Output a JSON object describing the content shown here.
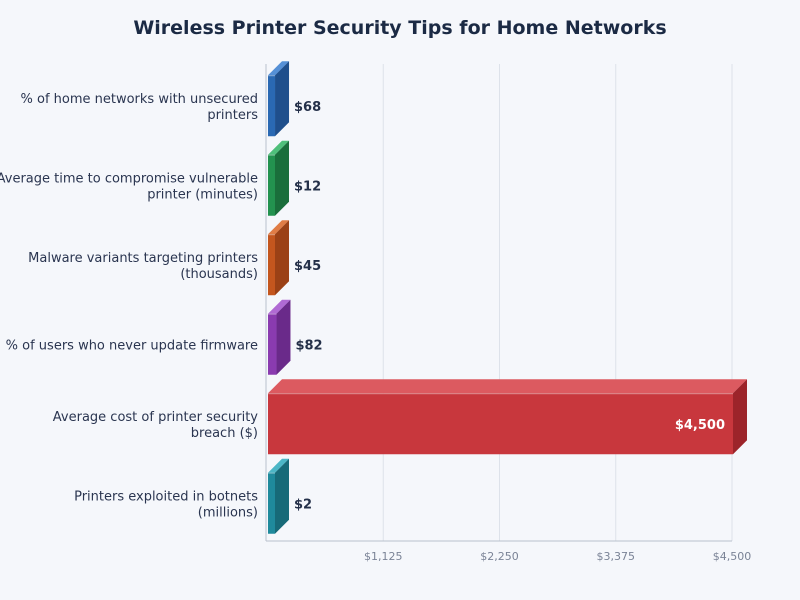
{
  "chart_data": {
    "type": "bar",
    "orientation": "horizontal",
    "style": "3d",
    "title": "Wireless Printer Security Tips for Home Networks",
    "xlabel": "",
    "ylabel": "",
    "xlim": [
      0,
      4500
    ],
    "x_ticks": [
      1125,
      2250,
      3375,
      4500
    ],
    "x_tick_labels": [
      "$1,125",
      "$2,250",
      "$3,375",
      "$4,500"
    ],
    "grid": true,
    "categories": [
      [
        "% of home networks with unsecured",
        "printers"
      ],
      [
        "Average time to compromise vulnerable",
        "printer (minutes)"
      ],
      [
        "Malware variants targeting printers",
        "(thousands)"
      ],
      [
        "% of users who never update firmware"
      ],
      [
        "Average cost of printer security",
        "breach ($)"
      ],
      [
        "Printers exploited in botnets",
        "(millions)"
      ]
    ],
    "values": [
      68,
      12,
      45,
      82,
      4500,
      2
    ],
    "value_labels": [
      "$68",
      "$12",
      "$45",
      "$82",
      "$4,500",
      "$2"
    ],
    "colors": [
      {
        "front": "#2a69b3",
        "side": "#1f4f8c",
        "top": "#5590d6"
      },
      {
        "front": "#23924f",
        "side": "#1a6e3b",
        "top": "#4fbf7a"
      },
      {
        "front": "#c4561e",
        "side": "#9b4116",
        "top": "#e07c45"
      },
      {
        "front": "#8a3bb0",
        "side": "#6a2a8a",
        "top": "#b06ad4"
      },
      {
        "front": "#c8373d",
        "side": "#9c242a",
        "top": "#dc5a60"
      },
      {
        "front": "#1f8a9c",
        "side": "#176a78",
        "top": "#4cb6c6"
      }
    ]
  }
}
